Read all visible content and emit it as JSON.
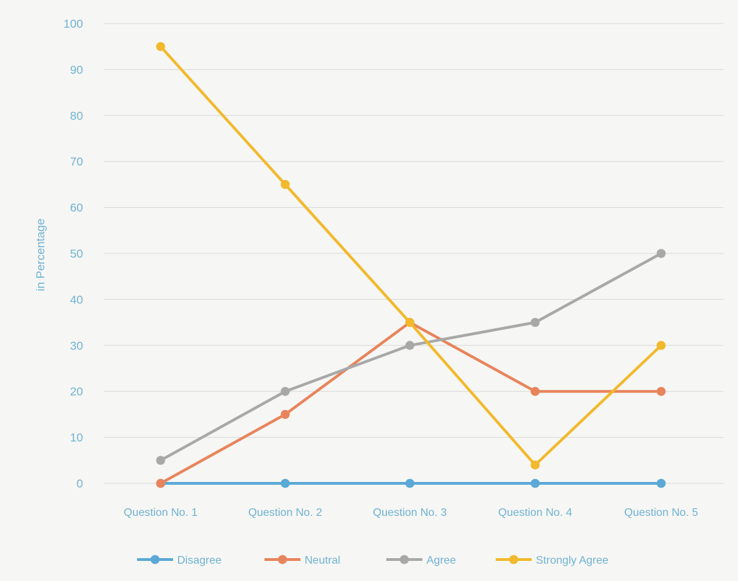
{
  "chart_data": {
    "type": "line",
    "categories": [
      "Question No. 1",
      "Question No. 2",
      "Question No. 3",
      "Question No. 4",
      "Question No. 5"
    ],
    "series": [
      {
        "name": "Disagree",
        "color": "#5aa9d6",
        "values": [
          0,
          0,
          0,
          0,
          0
        ]
      },
      {
        "name": "Neutral",
        "color": "#e8845b",
        "values": [
          0,
          15,
          35,
          20,
          20
        ]
      },
      {
        "name": "Agree",
        "color": "#a8a8a8",
        "values": [
          5,
          20,
          30,
          35,
          50
        ]
      },
      {
        "name": "Strongly Agree",
        "color": "#f2b92c",
        "values": [
          95,
          65,
          35,
          4,
          30
        ]
      }
    ],
    "ylabel": "in Percentage",
    "xlabel": "",
    "ylim": [
      0,
      100
    ],
    "yticks": [
      0,
      10,
      20,
      30,
      40,
      50,
      60,
      70,
      80,
      90,
      100
    ],
    "grid": true,
    "legend_position": "bottom"
  }
}
